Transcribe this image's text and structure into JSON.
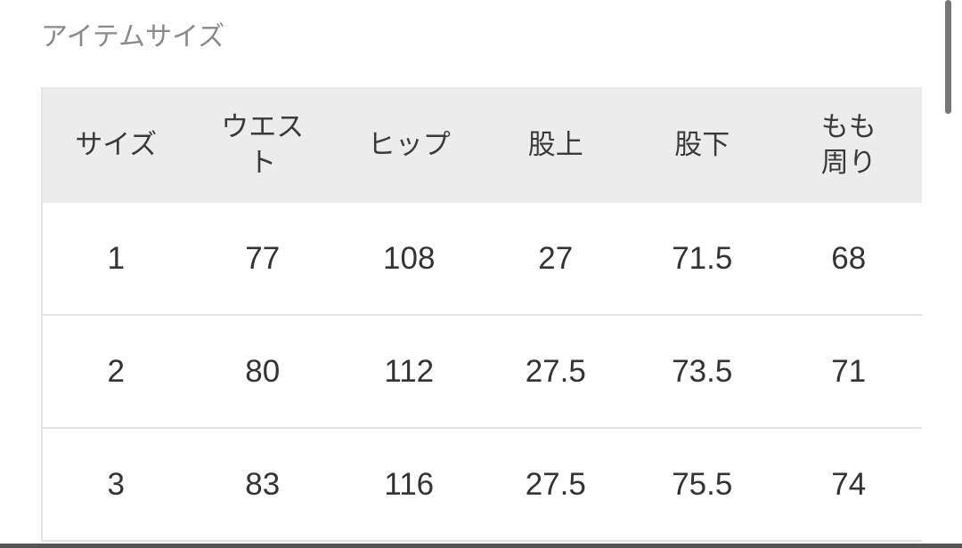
{
  "section_title": "アイテムサイズ",
  "table": {
    "headers": [
      "サイズ",
      "ウエスト",
      "ヒップ",
      "股上",
      "股下",
      "もも周り"
    ],
    "rows": [
      [
        "1",
        "77",
        "108",
        "27",
        "71.5",
        "68"
      ],
      [
        "2",
        "80",
        "112",
        "27.5",
        "73.5",
        "71"
      ],
      [
        "3",
        "83",
        "116",
        "27.5",
        "75.5",
        "74"
      ]
    ]
  }
}
